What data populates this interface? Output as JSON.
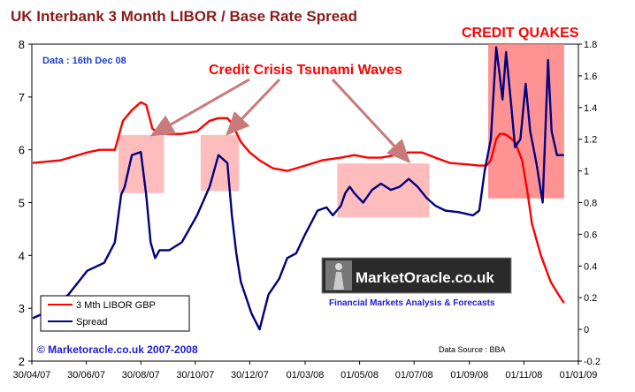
{
  "chart_data": {
    "type": "line",
    "title": "UK Interbank  3 Month LIBOR / Base Rate Spread",
    "date_note": "Data : 16th Dec 08",
    "headline_annotation": "Credit Crisis  Tsunami Waves",
    "quakes_label": "CREDIT QUAKES",
    "copyright": "© Marketoracle.co.uk 2007-2008",
    "source": "Data Source : BBA",
    "logo_text": "MarketOracle.co.uk",
    "logo_tagline": "Financial Markets Analysis & Forecasts",
    "x_ticks": [
      "30/04/07",
      "30/06/07",
      "30/08/07",
      "30/10/07",
      "30/12/07",
      "01/03/08",
      "01/05/08",
      "01/07/08",
      "01/09/08",
      "01/11/08",
      "01/01/09"
    ],
    "y_left": {
      "range": [
        2,
        8
      ],
      "ticks": [
        "2",
        "3",
        "4",
        "5",
        "6",
        "7",
        "8"
      ]
    },
    "y_right": {
      "range": [
        -0.2,
        1.8
      ],
      "ticks": [
        "-0.2",
        "0",
        "0.2",
        "0.4",
        "0.6",
        "0.8",
        "1",
        "1.2",
        "1.4",
        "1.6",
        "1.8"
      ]
    },
    "series": [
      {
        "name": "3 Mth LIBOR GBP",
        "color": "#ff0000",
        "axis": "left",
        "x": [
          "2007-05-01",
          "2007-06-01",
          "2007-07-01",
          "2007-07-15",
          "2007-08-01",
          "2007-08-10",
          "2007-08-20",
          "2007-08-30",
          "2007-09-05",
          "2007-09-12",
          "2007-09-20",
          "2007-10-01",
          "2007-10-15",
          "2007-11-01",
          "2007-11-15",
          "2007-11-25",
          "2007-12-05",
          "2007-12-10",
          "2007-12-20",
          "2007-12-30",
          "2008-01-10",
          "2008-01-25",
          "2008-02-10",
          "2008-03-01",
          "2008-03-20",
          "2008-04-10",
          "2008-04-25",
          "2008-05-10",
          "2008-05-25",
          "2008-06-10",
          "2008-06-25",
          "2008-07-10",
          "2008-07-25",
          "2008-08-10",
          "2008-09-01",
          "2008-09-12",
          "2008-09-20",
          "2008-09-25",
          "2008-10-01",
          "2008-10-05",
          "2008-10-10",
          "2008-10-15",
          "2008-10-22",
          "2008-10-30",
          "2008-11-05",
          "2008-11-10",
          "2008-11-20",
          "2008-12-01",
          "2008-12-10",
          "2008-12-16"
        ],
        "values": [
          5.75,
          5.8,
          5.95,
          6.0,
          6.0,
          6.55,
          6.75,
          6.9,
          6.85,
          6.4,
          6.3,
          6.3,
          6.3,
          6.35,
          6.55,
          6.6,
          6.6,
          6.5,
          6.15,
          5.95,
          5.8,
          5.65,
          5.6,
          5.7,
          5.8,
          5.85,
          5.9,
          5.85,
          5.85,
          5.9,
          5.95,
          5.95,
          5.85,
          5.75,
          5.72,
          5.7,
          5.7,
          5.8,
          6.2,
          6.3,
          6.3,
          6.25,
          6.15,
          5.8,
          5.2,
          4.6,
          4.0,
          3.5,
          3.25,
          3.1
        ]
      },
      {
        "name": "Spread",
        "color": "#000080",
        "axis": "right",
        "x": [
          "2007-05-01",
          "2007-05-20",
          "2007-06-10",
          "2007-07-01",
          "2007-07-20",
          "2007-08-01",
          "2007-08-08",
          "2007-08-12",
          "2007-08-20",
          "2007-08-30",
          "2007-09-05",
          "2007-09-10",
          "2007-09-15",
          "2007-09-20",
          "2007-10-01",
          "2007-10-15",
          "2007-11-01",
          "2007-11-15",
          "2007-11-25",
          "2007-12-05",
          "2007-12-10",
          "2007-12-15",
          "2007-12-20",
          "2008-01-01",
          "2008-01-10",
          "2008-01-20",
          "2008-02-01",
          "2008-02-10",
          "2008-02-20",
          "2008-03-01",
          "2008-03-15",
          "2008-03-25",
          "2008-04-01",
          "2008-04-10",
          "2008-04-15",
          "2008-04-20",
          "2008-04-25",
          "2008-05-05",
          "2008-05-15",
          "2008-05-25",
          "2008-06-05",
          "2008-06-15",
          "2008-06-25",
          "2008-07-05",
          "2008-07-15",
          "2008-07-25",
          "2008-08-05",
          "2008-08-20",
          "2008-09-05",
          "2008-09-12",
          "2008-09-18",
          "2008-09-25",
          "2008-10-01",
          "2008-10-05",
          "2008-10-08",
          "2008-10-12",
          "2008-10-18",
          "2008-10-22",
          "2008-10-28",
          "2008-11-03",
          "2008-11-08",
          "2008-11-15",
          "2008-11-22",
          "2008-11-28",
          "2008-12-02",
          "2008-12-08",
          "2008-12-16"
        ],
        "values": [
          0.07,
          0.12,
          0.22,
          0.37,
          0.42,
          0.55,
          0.85,
          0.9,
          1.1,
          1.12,
          0.85,
          0.55,
          0.45,
          0.5,
          0.5,
          0.55,
          0.72,
          0.9,
          1.1,
          1.05,
          0.72,
          0.48,
          0.3,
          0.1,
          0.0,
          0.22,
          0.32,
          0.45,
          0.48,
          0.6,
          0.75,
          0.77,
          0.72,
          0.78,
          0.86,
          0.9,
          0.86,
          0.8,
          0.88,
          0.92,
          0.88,
          0.9,
          0.95,
          0.9,
          0.83,
          0.78,
          0.75,
          0.74,
          0.72,
          0.75,
          1.0,
          1.2,
          1.78,
          1.6,
          1.45,
          1.75,
          1.4,
          1.15,
          1.2,
          1.55,
          1.25,
          1.05,
          0.8,
          1.7,
          1.25,
          1.1,
          1.1
        ]
      }
    ],
    "highlight_boxes": [
      {
        "x": [
          "2007-08-05",
          "2007-09-25"
        ],
        "y": [
          5.18,
          6.28
        ],
        "color": "#ffb0b0"
      },
      {
        "x": [
          "2007-11-05",
          "2007-12-18"
        ],
        "y": [
          5.22,
          6.28
        ],
        "color": "#ffb0b0"
      },
      {
        "x": [
          "2008-04-06",
          "2008-07-18"
        ],
        "y": [
          4.72,
          5.74
        ],
        "color": "#ffb0b0"
      },
      {
        "x": [
          "2008-09-22",
          "2008-12-16"
        ],
        "y": [
          5.08,
          8.0
        ],
        "color": "#ff8080"
      }
    ],
    "arrow_targets": [
      {
        "x": "2007-09-12",
        "y": 6.28
      },
      {
        "x": "2007-12-05",
        "y": 6.3
      },
      {
        "x": "2008-06-25",
        "y": 5.78
      }
    ],
    "legend_position": "bottom-left"
  }
}
